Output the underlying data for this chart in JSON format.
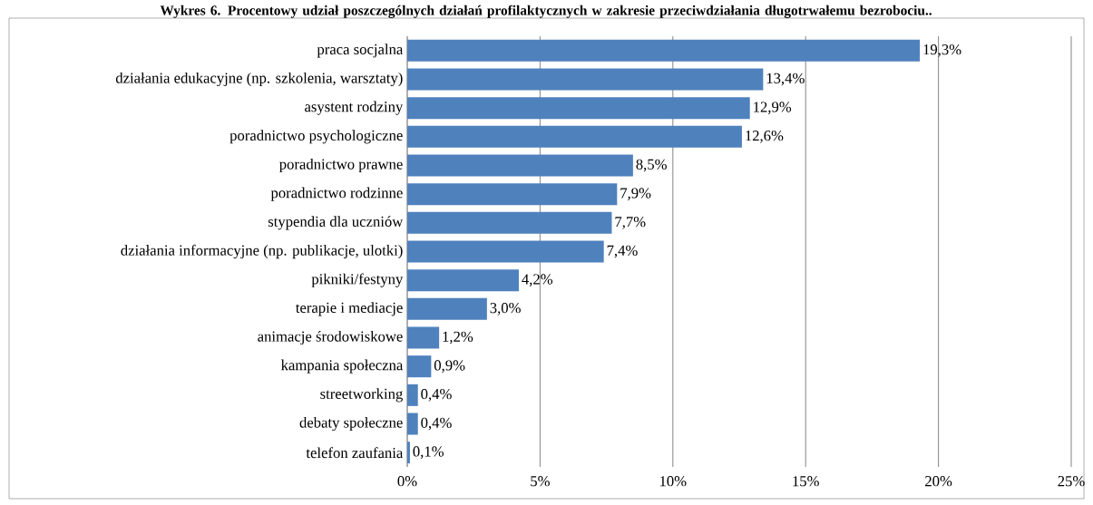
{
  "chart_data": {
    "type": "bar",
    "orientation": "horizontal",
    "title": "Wykres 6. Procentowy udział poszczególnych działań profilaktycznych w zakresie przeciwdziałania długotrwałemu bezrobociu..",
    "categories": [
      "praca socjalna",
      "działania edukacyjne (np. szkolenia, warsztaty)",
      "asystent rodziny",
      "poradnictwo psychologiczne",
      "poradnictwo prawne",
      "poradnictwo rodzinne",
      "stypendia dla uczniów",
      "działania informacyjne (np. publikacje, ulotki)",
      "pikniki/festyny",
      "terapie i mediacje",
      "animacje środowiskowe",
      "kampania społeczna",
      "streetworking",
      "debaty społeczne",
      "telefon zaufania"
    ],
    "values": [
      19.3,
      13.4,
      12.9,
      12.6,
      8.5,
      7.9,
      7.7,
      7.4,
      4.2,
      3.0,
      1.2,
      0.9,
      0.4,
      0.4,
      0.1
    ],
    "value_labels": [
      "19,3%",
      "13,4%",
      "12,9%",
      "12,6%",
      "8,5%",
      "7,9%",
      "7,7%",
      "7,4%",
      "4,2%",
      "3,0%",
      "1,2%",
      "0,9%",
      "0,4%",
      "0,4%",
      "0,1%"
    ],
    "color": "#4f81bd",
    "xlim": [
      0,
      25
    ],
    "xticks": [
      {
        "value": 0,
        "label": "0%"
      },
      {
        "value": 5,
        "label": "5%"
      },
      {
        "value": 10,
        "label": "10%"
      },
      {
        "value": 15,
        "label": "15%"
      },
      {
        "value": 20,
        "label": "20%"
      },
      {
        "value": 25,
        "label": "25%"
      }
    ],
    "grid": "x"
  }
}
